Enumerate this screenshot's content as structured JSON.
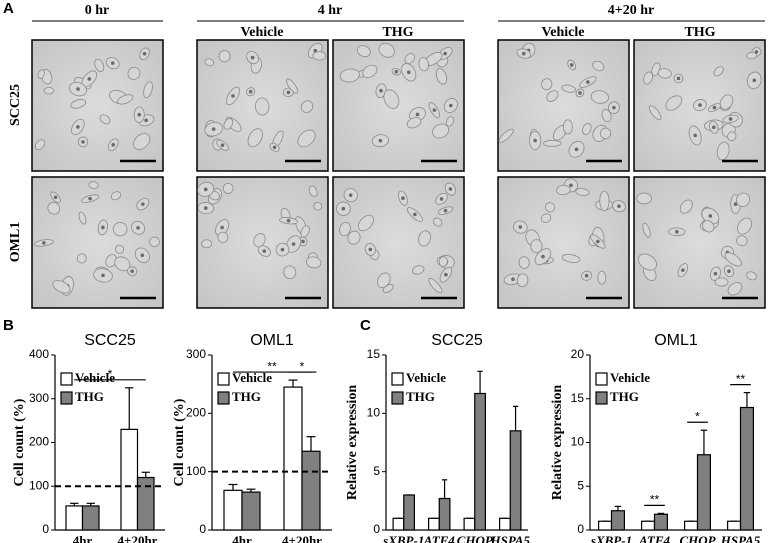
{
  "figure": {
    "panels": [
      "A",
      "B",
      "C"
    ],
    "column_groups": [
      "0 hr",
      "4 hr",
      "4+20 hr"
    ],
    "column_labels": [
      "Vehicle",
      "THG",
      "Vehicle",
      "THG"
    ],
    "row_labels": [
      "SCC25",
      "OML1"
    ]
  },
  "chart_data": [
    {
      "type": "bar",
      "title": "SCC25",
      "ylabel": "Cell count (%)",
      "categories": [
        "4hr",
        "4+20hr"
      ],
      "series": [
        {
          "name": "Vehicle",
          "color": "#ffffff",
          "values": [
            55,
            230
          ],
          "errors": [
            6,
            95
          ]
        },
        {
          "name": "THG",
          "color": "#808080",
          "values": [
            55,
            120
          ],
          "errors": [
            6,
            12
          ]
        }
      ],
      "ylim": [
        0,
        400
      ],
      "yticks": [
        0,
        100,
        200,
        300,
        400
      ],
      "legend": "upper left",
      "reference_line": 100,
      "annotations": [
        {
          "text": "*",
          "from": "4hr",
          "to": "4+20hr"
        }
      ]
    },
    {
      "type": "bar",
      "title": "OML1",
      "ylabel": "Cell count (%)",
      "categories": [
        "4hr",
        "4+20hr"
      ],
      "series": [
        {
          "name": "Vehicle",
          "color": "#ffffff",
          "values": [
            68,
            245
          ],
          "errors": [
            10,
            12
          ]
        },
        {
          "name": "THG",
          "color": "#808080",
          "values": [
            65,
            135
          ],
          "errors": [
            5,
            25
          ]
        }
      ],
      "ylim": [
        0,
        300
      ],
      "yticks": [
        0,
        100,
        200,
        300
      ],
      "legend": "upper left",
      "reference_line": 100,
      "annotations": [
        {
          "text": "**",
          "from": "4hr",
          "to": "4+20hr"
        },
        {
          "text": "*",
          "from": "4+20hr",
          "to": "4+20hr"
        }
      ]
    },
    {
      "type": "bar",
      "title": "SCC25",
      "ylabel": "Relative expression",
      "categories": [
        "sXBP-1",
        "ATF4",
        "CHOP",
        "HSPA5"
      ],
      "italic_categories": true,
      "series": [
        {
          "name": "Vehicle",
          "color": "#ffffff",
          "values": [
            1,
            1,
            1,
            1
          ],
          "errors": [
            0,
            0,
            0,
            0
          ]
        },
        {
          "name": "THG",
          "color": "#808080",
          "values": [
            3,
            2.7,
            11.7,
            8.5
          ],
          "errors": [
            0,
            1.6,
            1.9,
            2.1
          ]
        }
      ],
      "ylim": [
        0,
        15
      ],
      "yticks": [
        0,
        5,
        10,
        15
      ],
      "legend": "upper left",
      "annotations": []
    },
    {
      "type": "bar",
      "title": "OML1",
      "ylabel": "Relative expression",
      "categories": [
        "sXBP-1",
        "ATF4",
        "CHOP",
        "HSPA5"
      ],
      "italic_categories": true,
      "series": [
        {
          "name": "Vehicle",
          "color": "#ffffff",
          "values": [
            1,
            1,
            1,
            1
          ],
          "errors": [
            0,
            0,
            0,
            0
          ]
        },
        {
          "name": "THG",
          "color": "#808080",
          "values": [
            2.2,
            1.8,
            8.6,
            14
          ],
          "errors": [
            0.5,
            0.1,
            2.8,
            1.7
          ]
        }
      ],
      "ylim": [
        0,
        20
      ],
      "yticks": [
        0,
        5,
        10,
        15,
        20
      ],
      "legend": "upper left",
      "annotations": [
        {
          "text": "**",
          "from": "ATF4",
          "to": "ATF4"
        },
        {
          "text": "*",
          "from": "CHOP",
          "to": "CHOP"
        },
        {
          "text": "**",
          "from": "HSPA5",
          "to": "HSPA5"
        }
      ]
    }
  ]
}
